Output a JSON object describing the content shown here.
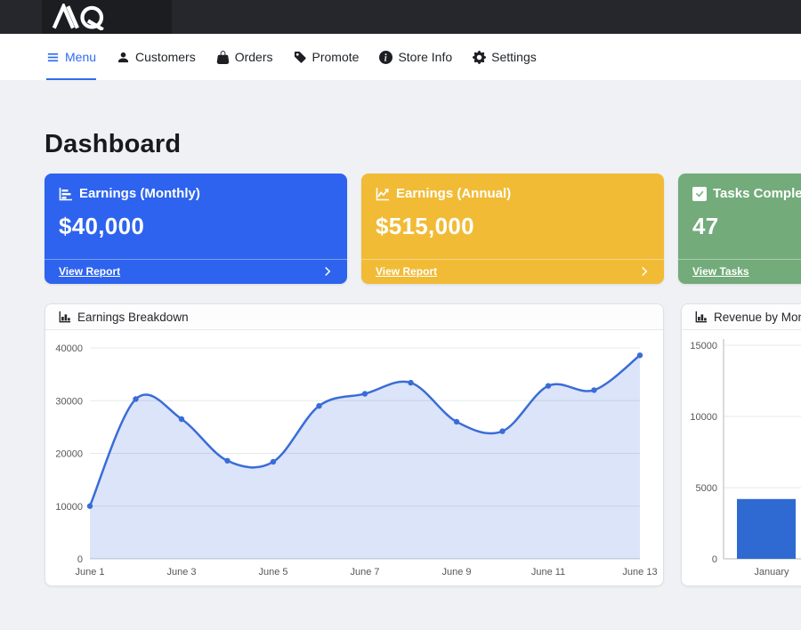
{
  "topbar": {
    "logo": "MQ"
  },
  "nav": {
    "items": [
      {
        "label": "Menu",
        "icon": "hamburger-icon",
        "active": true
      },
      {
        "label": "Customers",
        "icon": "person-icon",
        "active": false
      },
      {
        "label": "Orders",
        "icon": "bag-icon",
        "active": false
      },
      {
        "label": "Promote",
        "icon": "tag-icon",
        "active": false
      },
      {
        "label": "Store Info",
        "icon": "info-circle-icon",
        "active": false
      },
      {
        "label": "Settings",
        "icon": "gear-icon",
        "active": false
      }
    ]
  },
  "page": {
    "title": "Dashboard"
  },
  "metric_cards": [
    {
      "title": "Earnings (Monthly)",
      "value": "$40,000",
      "link": "View Report",
      "color": "#2d63ee",
      "icon": "bar-chart-icon"
    },
    {
      "title": "Earnings (Annual)",
      "value": "$515,000",
      "link": "View Report",
      "color": "#f1bb36",
      "icon": "line-chart-icon"
    },
    {
      "title": "Tasks Completed",
      "value": "47",
      "link": "View Tasks",
      "color": "#73ab7b",
      "icon": "check-square-icon"
    }
  ],
  "chart_cards": [
    {
      "title": "Earnings Breakdown"
    },
    {
      "title": "Revenue by Month"
    }
  ],
  "chart_data": [
    {
      "type": "area",
      "title": "Earnings Breakdown",
      "x": [
        "June 1",
        "June 2",
        "June 3",
        "June 4",
        "June 5",
        "June 6",
        "June 7",
        "June 8",
        "June 9",
        "June 10",
        "June 11",
        "June 12",
        "June 13"
      ],
      "values": [
        10000,
        30300,
        26500,
        18600,
        18400,
        29000,
        31300,
        33400,
        26000,
        24200,
        32800,
        32000,
        38600
      ],
      "xtick_every": 2,
      "yticks": [
        0,
        10000,
        20000,
        30000,
        40000
      ],
      "ylim": [
        0,
        40000
      ],
      "grid": true,
      "line_color": "#3a6cd8",
      "fill_color": "rgba(58,108,216,0.18)",
      "point_color": "#3a6cd8"
    },
    {
      "type": "bar",
      "title": "Revenue by Month",
      "categories": [
        "January"
      ],
      "values": [
        4200
      ],
      "yticks": [
        0,
        5000,
        10000,
        15000
      ],
      "ylim": [
        0,
        15000
      ],
      "grid": true,
      "bar_color": "#2f6ad3",
      "note": "chart clipped at right edge of viewport"
    }
  ]
}
